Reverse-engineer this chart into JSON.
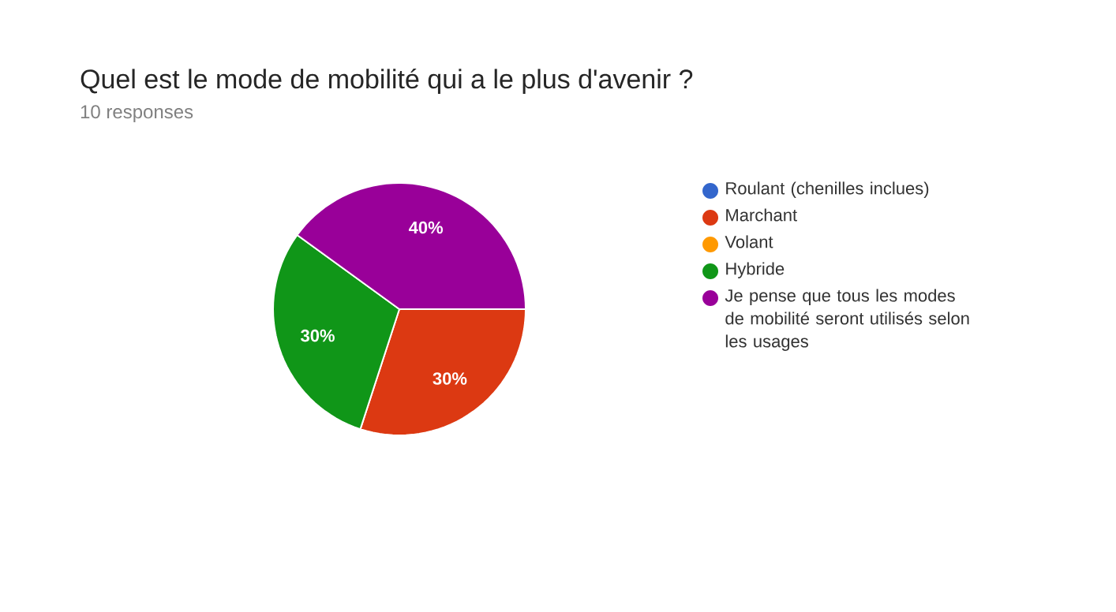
{
  "chart_data": {
    "type": "pie",
    "title": "Quel est le mode de mobilité qui a le plus d'avenir ?",
    "subtitle": "10 responses",
    "categories": [
      "Roulant (chenilles inclues)",
      "Marchant",
      "Volant",
      "Hybride",
      "Je pense que tous les modes de mobilité seront utilisés selon les usages"
    ],
    "values": [
      0,
      30,
      0,
      30,
      40
    ],
    "colors": [
      "#3366cc",
      "#dc3912",
      "#ff9900",
      "#109618",
      "#990099"
    ],
    "value_labels": [
      null,
      "30%",
      null,
      "30%",
      "40%"
    ],
    "legend": "right"
  }
}
